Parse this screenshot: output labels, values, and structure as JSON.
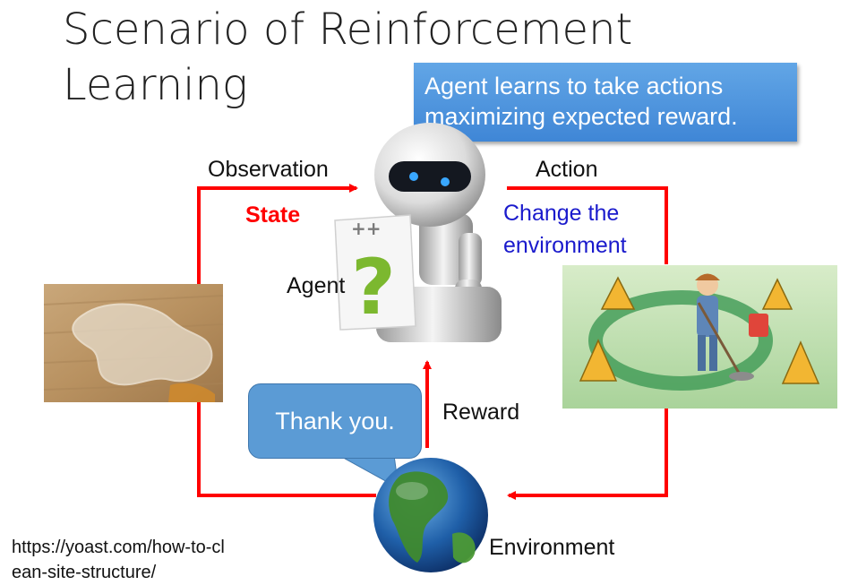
{
  "title": "Scenario of Reinforcement Learning",
  "callout": "Agent learns to take actions maximizing expected reward.",
  "labels": {
    "observation": "Observation",
    "state": "State",
    "agent": "Agent",
    "action": "Action",
    "change": "Change the environment",
    "reward": "Reward",
    "environment": "Environment"
  },
  "speech": "Thank you.",
  "source_url": "https://yoast.com/how-to-clean-site-structure/",
  "colors": {
    "arrow": "#ff0000",
    "callout_bg": "#4a90d9",
    "speech_bg": "#5b9bd5",
    "state_text": "#ff0000",
    "change_text": "#1a1acc"
  },
  "images": {
    "robot": "robot-agent-illustration",
    "question_card": "question-mark-card",
    "spill": "water-spill-photo",
    "cleaner": "cleaning-person-illustration",
    "globe": "earth-globe"
  }
}
